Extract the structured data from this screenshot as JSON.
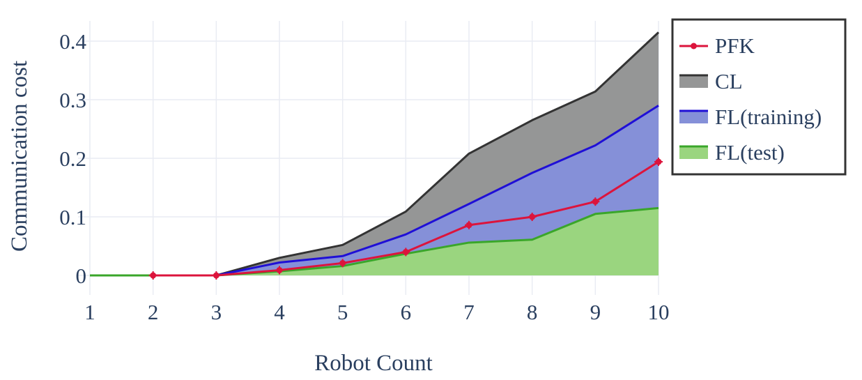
{
  "chart_data": {
    "type": "area",
    "x": [
      1,
      2,
      3,
      4,
      5,
      6,
      7,
      8,
      9,
      10
    ],
    "xlabel": "Robot Count",
    "ylabel": "Communication cost",
    "xlim": [
      1,
      10
    ],
    "ylim": [
      0,
      0.43
    ],
    "xticks": [
      "1",
      "2",
      "3",
      "4",
      "5",
      "6",
      "7",
      "8",
      "9",
      "10"
    ],
    "yticks": [
      {
        "value": 0,
        "label": "0"
      },
      {
        "value": 0.1,
        "label": "0.1"
      },
      {
        "value": 0.2,
        "label": "0.2"
      },
      {
        "value": 0.3,
        "label": "0.3"
      },
      {
        "value": 0.4,
        "label": "0.4"
      }
    ],
    "grid": true,
    "legend_position": "top-right",
    "series": [
      {
        "name": "PFK",
        "kind": "line-markers",
        "color": "#dc143c",
        "values": [
          0,
          0,
          0,
          0.009,
          0.021,
          0.04,
          0.086,
          0.1,
          0.126,
          0.194
        ]
      },
      {
        "name": "CL",
        "kind": "area",
        "color": "#333333",
        "fill": "#959696",
        "values": [
          0,
          0,
          0,
          0.03,
          0.052,
          0.109,
          0.208,
          0.265,
          0.314,
          0.415
        ]
      },
      {
        "name": "FL(training)",
        "kind": "area",
        "color": "#1f0fd6",
        "fill": "#8590d8",
        "values": [
          0,
          0,
          0,
          0.022,
          0.033,
          0.07,
          0.122,
          0.175,
          0.222,
          0.29
        ]
      },
      {
        "name": "FL(test)",
        "kind": "area",
        "color": "#3aa62a",
        "fill": "#9ad57f",
        "values": [
          0,
          0,
          0,
          0.007,
          0.016,
          0.037,
          0.056,
          0.061,
          0.105,
          0.115
        ]
      }
    ]
  }
}
